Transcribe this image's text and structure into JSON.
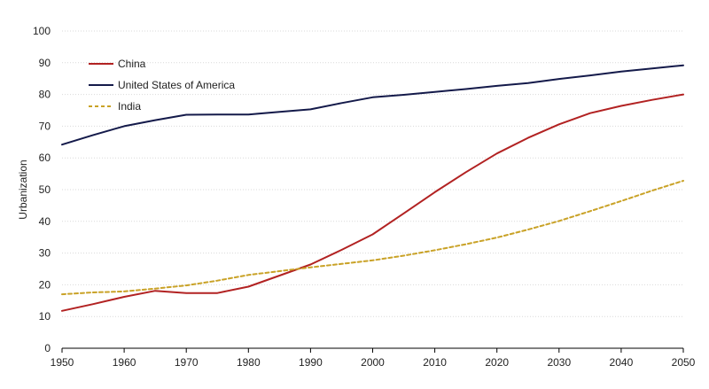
{
  "chart_data": {
    "type": "line",
    "title": "",
    "xlabel": "",
    "ylabel": "Urbanization",
    "xlim": [
      1950,
      2050
    ],
    "ylim": [
      0,
      100
    ],
    "x_ticks": [
      1950,
      1960,
      1970,
      1980,
      1990,
      2000,
      2010,
      2020,
      2030,
      2040,
      2050
    ],
    "y_ticks": [
      0,
      10,
      20,
      30,
      40,
      50,
      60,
      70,
      80,
      90,
      100
    ],
    "grid": "horizontal",
    "legend_position": "top-left",
    "x": [
      1950,
      1955,
      1960,
      1965,
      1970,
      1975,
      1980,
      1985,
      1990,
      1995,
      2000,
      2005,
      2010,
      2015,
      2020,
      2025,
      2030,
      2035,
      2040,
      2045,
      2050
    ],
    "series": [
      {
        "name": "China",
        "color": "#b22222",
        "style": "solid",
        "values": [
          11.8,
          13.9,
          16.2,
          18.1,
          17.4,
          17.4,
          19.4,
          22.9,
          26.4,
          31.0,
          35.9,
          42.5,
          49.2,
          55.5,
          61.4,
          66.3,
          70.6,
          74.1,
          76.4,
          78.3,
          80.0
        ]
      },
      {
        "name": "United States of America",
        "color": "#141a4a",
        "style": "solid",
        "values": [
          64.2,
          67.2,
          70.0,
          71.9,
          73.6,
          73.7,
          73.7,
          74.5,
          75.3,
          77.3,
          79.1,
          79.9,
          80.8,
          81.7,
          82.7,
          83.6,
          84.9,
          86.0,
          87.2,
          88.2,
          89.2
        ]
      },
      {
        "name": "India",
        "color": "#c9a227",
        "style": "dashed",
        "values": [
          17.0,
          17.6,
          17.9,
          18.8,
          19.8,
          21.3,
          23.1,
          24.3,
          25.5,
          26.6,
          27.7,
          29.2,
          30.9,
          32.8,
          34.9,
          37.4,
          40.1,
          43.2,
          46.4,
          49.7,
          52.8
        ]
      }
    ]
  }
}
